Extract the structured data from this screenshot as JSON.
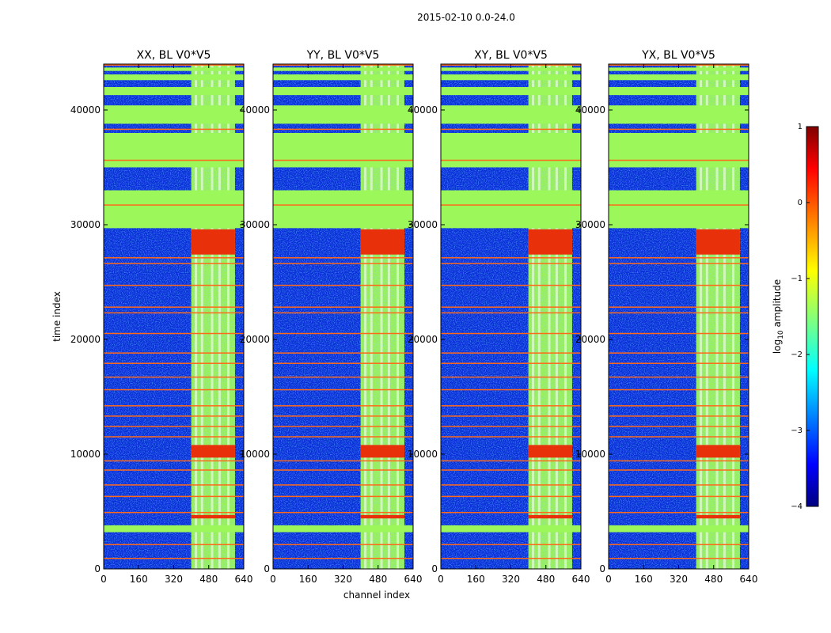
{
  "chart_data": {
    "type": "heatmap",
    "suptitle": "2015-02-10 0.0-24.0",
    "xlabel": "channel index",
    "ylabel": "time index",
    "xlim": [
      0,
      640
    ],
    "ylim": [
      0,
      44000
    ],
    "xticks": [
      "0",
      "160",
      "320",
      "480",
      "640"
    ],
    "yticks": [
      "0",
      "10000",
      "20000",
      "30000",
      "40000"
    ],
    "panels": [
      {
        "title": "XX, BL V0*V5",
        "band_start": 400,
        "band_end": 600
      },
      {
        "title": "YY, BL V0*V5",
        "band_start": 400,
        "band_end": 600
      },
      {
        "title": "XY, BL V0*V5",
        "band_start": 400,
        "band_end": 600
      },
      {
        "title": "YX, BL V0*V5",
        "band_start": 400,
        "band_end": 600
      }
    ],
    "flagged_rows": [
      [
        3200,
        3800
      ],
      [
        29700,
        33000
      ],
      [
        35000,
        38000
      ],
      [
        38800,
        40400
      ],
      [
        41300,
        42000
      ],
      [
        42600,
        43100
      ],
      [
        43400,
        43700
      ]
    ],
    "hot_rows": [
      [
        4400,
        4700
      ],
      [
        9700,
        10800
      ],
      [
        27400,
        29600
      ]
    ],
    "orange_lines": [
      900,
      2100,
      4900,
      6300,
      7300,
      8600,
      9400,
      11500,
      12400,
      13300,
      14200,
      15600,
      16700,
      17900,
      18800,
      20500,
      22300,
      22800,
      24700,
      26600,
      27100,
      31700,
      35600,
      38300,
      43900
    ],
    "colorbar": {
      "label": "log10 amplitude",
      "label_base": "log",
      "label_sub": "10",
      "label_rest": " amplitude",
      "range": [
        -4,
        1
      ],
      "ticks": [
        "1",
        "0",
        "−1",
        "−2",
        "−3",
        "−4"
      ],
      "colormap": "jet"
    }
  }
}
